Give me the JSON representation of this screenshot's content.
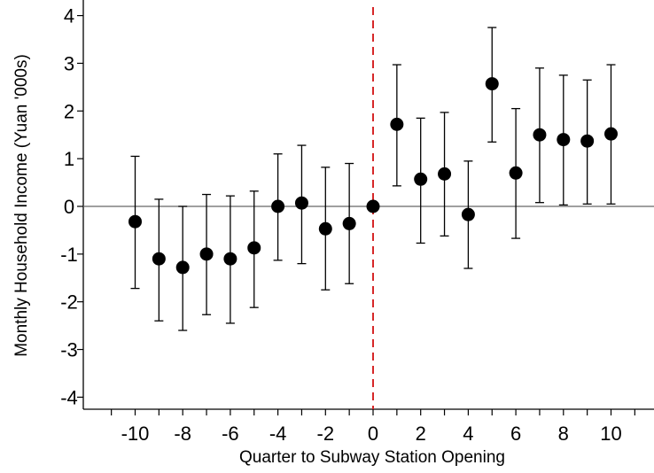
{
  "chart_data": {
    "type": "scatter",
    "style": "event-study coefficient plot with 95% confidence interval error bars",
    "xlabel": "Quarter to Subway Station Opening",
    "ylabel": "Monthly Household Income (Yuan '000s)",
    "xlim": [
      -11.2,
      11.2
    ],
    "ylim": [
      -4.3,
      4.3
    ],
    "x_ticks": [
      -10,
      -8,
      -6,
      -4,
      -2,
      0,
      2,
      4,
      6,
      8,
      10
    ],
    "x_tick_labels": [
      "-10",
      "-8",
      "-6",
      "-4",
      "-2",
      "0",
      "2",
      "4",
      "6",
      "8",
      "10"
    ],
    "y_ticks": [
      -4,
      -3,
      -2,
      -1,
      0,
      1,
      2,
      3,
      4
    ],
    "y_tick_labels": [
      "-4",
      "-3",
      "-2",
      "-1",
      "0",
      "1",
      "2",
      "3",
      "4"
    ],
    "reference_lines": {
      "horizontal_zero": {
        "value": 0,
        "color": "#666666"
      },
      "event_line": {
        "x": 0,
        "color": "#d62728",
        "style": "dashed"
      }
    },
    "grid": false,
    "legend": "none",
    "marker_color": "#000000",
    "points": [
      {
        "x": -10,
        "y": -0.32,
        "lo": -1.72,
        "hi": 1.05
      },
      {
        "x": -9,
        "y": -1.1,
        "lo": -2.4,
        "hi": 0.15
      },
      {
        "x": -8,
        "y": -1.28,
        "lo": -2.6,
        "hi": 0.0
      },
      {
        "x": -7,
        "y": -1.0,
        "lo": -2.27,
        "hi": 0.25
      },
      {
        "x": -6,
        "y": -1.1,
        "lo": -2.45,
        "hi": 0.22
      },
      {
        "x": -5,
        "y": -0.87,
        "lo": -2.12,
        "hi": 0.32
      },
      {
        "x": -4,
        "y": 0.0,
        "lo": -1.13,
        "hi": 1.1
      },
      {
        "x": -3,
        "y": 0.07,
        "lo": -1.2,
        "hi": 1.28
      },
      {
        "x": -2,
        "y": -0.47,
        "lo": -1.75,
        "hi": 0.82
      },
      {
        "x": -1,
        "y": -0.36,
        "lo": -1.62,
        "hi": 0.9
      },
      {
        "x": 0,
        "y": 0.0,
        "lo": 0.0,
        "hi": 0.0
      },
      {
        "x": 1,
        "y": 1.72,
        "lo": 0.43,
        "hi": 2.97
      },
      {
        "x": 2,
        "y": 0.57,
        "lo": -0.77,
        "hi": 1.85
      },
      {
        "x": 3,
        "y": 0.68,
        "lo": -0.62,
        "hi": 1.97
      },
      {
        "x": 4,
        "y": -0.17,
        "lo": -1.3,
        "hi": 0.95
      },
      {
        "x": 5,
        "y": 2.57,
        "lo": 1.35,
        "hi": 3.75
      },
      {
        "x": 6,
        "y": 0.7,
        "lo": -0.67,
        "hi": 2.05
      },
      {
        "x": 7,
        "y": 1.5,
        "lo": 0.08,
        "hi": 2.9
      },
      {
        "x": 8,
        "y": 1.4,
        "lo": 0.03,
        "hi": 2.75
      },
      {
        "x": 9,
        "y": 1.37,
        "lo": 0.05,
        "hi": 2.65
      },
      {
        "x": 10,
        "y": 1.52,
        "lo": 0.05,
        "hi": 2.97
      }
    ]
  }
}
